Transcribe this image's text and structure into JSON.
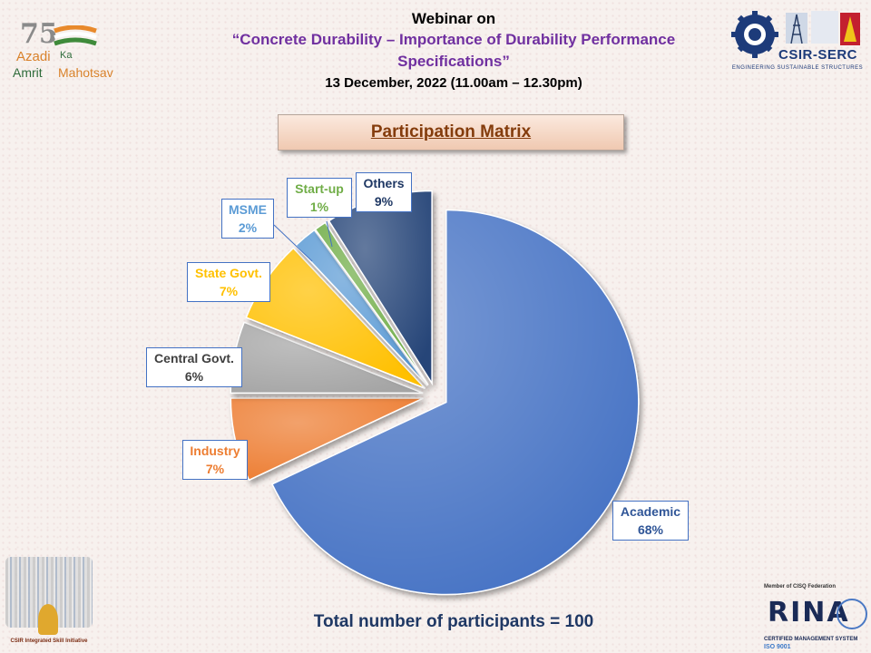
{
  "header": {
    "line1": "Webinar on",
    "line2": "“Concrete Durability – Importance of Durability Performance",
    "line3": "Specifications”",
    "line4": "13 December, 2022 (11.00am – 12.30pm)"
  },
  "logos": {
    "azadi": {
      "number": "75",
      "word1": "Azadi",
      "word2": "Ka",
      "word3": "Amrit",
      "word4": "Mahotsav"
    },
    "serc": {
      "name": "CSIR-SERC",
      "tagline": "ENGINEERING SUSTAINABLE STRUCTURES"
    },
    "skill": {
      "caption": "CSIR Integrated Skill Initiative"
    },
    "risa": {
      "member": "Member of CISQ Federation",
      "name": "RINA",
      "system": "CERTIFIED MANAGEMENT SYSTEM",
      "iso": "ISO 9001"
    }
  },
  "chart_data": {
    "type": "pie",
    "title": "Participation Matrix",
    "slices": [
      {
        "label": "Academic",
        "value": 68,
        "pct_label": "68%",
        "color": "#4472c4",
        "label_color": "#2f5597"
      },
      {
        "label": "Industry",
        "value": 7,
        "pct_label": "7%",
        "color": "#ed7d31",
        "label_color": "#ed7d31"
      },
      {
        "label": "Central Govt.",
        "value": 6,
        "pct_label": "6%",
        "color": "#a5a5a5",
        "label_color": "#404040"
      },
      {
        "label": "State Govt.",
        "value": 7,
        "pct_label": "7%",
        "color": "#ffc000",
        "label_color": "#ffc000"
      },
      {
        "label": "MSME",
        "value": 2,
        "pct_label": "2%",
        "color": "#5b9bd5",
        "label_color": "#5b9bd5"
      },
      {
        "label": "Start-up",
        "value": 1,
        "pct_label": "1%",
        "color": "#70ad47",
        "label_color": "#70ad47"
      },
      {
        "label": "Others",
        "value": 9,
        "pct_label": "9%",
        "color": "#264478",
        "label_color": "#1f3864"
      }
    ]
  },
  "footer": {
    "total": "Total number of participants = 100"
  }
}
